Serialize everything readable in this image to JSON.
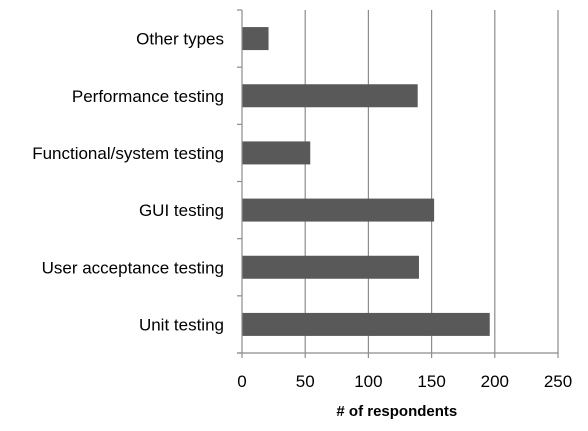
{
  "chart_data": {
    "type": "bar",
    "orientation": "horizontal",
    "categories": [
      "Other types",
      "Performance testing",
      "Functional/system testing",
      "GUI testing",
      "User acceptance testing",
      "Unit testing"
    ],
    "values": [
      21,
      139,
      54,
      152,
      140,
      196
    ],
    "xlabel": "# of respondents",
    "ylabel": "",
    "title": "",
    "xlim": [
      0,
      250
    ],
    "xticks": [
      0,
      50,
      100,
      150,
      200,
      250
    ],
    "xtick_labels": [
      "0",
      "50",
      "100",
      "150",
      "200",
      "250"
    ],
    "grid": "vertical major gridlines",
    "legend": "none",
    "bar_color": "#595959",
    "grid_color": "#8c8c8c",
    "axis_color": "#8c8c8c"
  }
}
